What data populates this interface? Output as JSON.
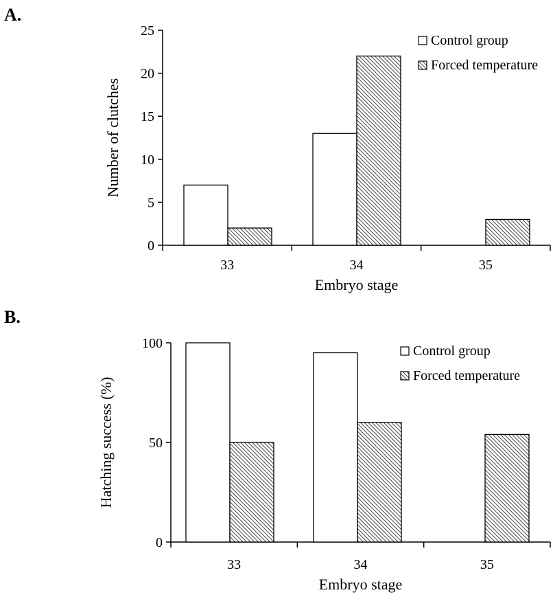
{
  "chart_data": [
    {
      "type": "bar",
      "panel_label": "A.",
      "categories": [
        "33",
        "34",
        "35"
      ],
      "series": [
        {
          "name": "Control group",
          "values": [
            7,
            13,
            0
          ],
          "fill": "white"
        },
        {
          "name": "Forced temperature",
          "values": [
            2,
            22,
            3
          ],
          "fill": "hatched"
        }
      ],
      "xlabel": "Embryo stage",
      "ylabel": "Number of clutches",
      "ylim": [
        0,
        25
      ],
      "yticks": [
        0,
        5,
        10,
        15,
        20,
        25
      ],
      "grid": false,
      "legend_position": "top-right"
    },
    {
      "type": "bar",
      "panel_label": "B.",
      "categories": [
        "33",
        "34",
        "35"
      ],
      "series": [
        {
          "name": "Control group",
          "values": [
            100,
            95,
            0
          ],
          "fill": "white"
        },
        {
          "name": "Forced temperature",
          "values": [
            50,
            60,
            54
          ],
          "fill": "hatched"
        }
      ],
      "xlabel": "Embryo stage",
      "ylabel": "Hatching success (%)",
      "ylim": [
        0,
        100
      ],
      "yticks": [
        0,
        50,
        100
      ],
      "grid": false,
      "legend_position": "top-right"
    }
  ]
}
